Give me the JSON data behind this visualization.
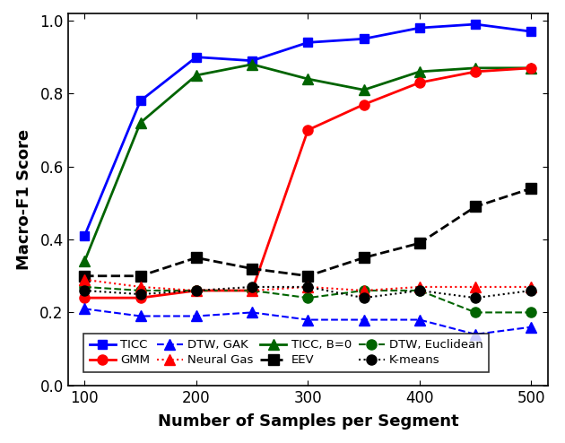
{
  "x": [
    100,
    150,
    200,
    250,
    300,
    350,
    400,
    450,
    500
  ],
  "series": [
    {
      "name": "TICC",
      "y": [
        0.41,
        0.78,
        0.9,
        0.89,
        0.94,
        0.95,
        0.98,
        0.99,
        0.97
      ],
      "color": "#0000FF",
      "linestyle": "-",
      "marker": "s",
      "linewidth": 2.0,
      "markersize": 7,
      "markerfacecolor": "#0000FF",
      "markeredgecolor": "#0000FF"
    },
    {
      "name": "TICC, B=0",
      "y": [
        0.34,
        0.72,
        0.85,
        0.88,
        0.84,
        0.81,
        0.86,
        0.87,
        0.87
      ],
      "color": "#006400",
      "linestyle": "-",
      "marker": "^",
      "linewidth": 2.0,
      "markersize": 8,
      "markerfacecolor": "#006400",
      "markeredgecolor": "#006400"
    },
    {
      "name": "GMM",
      "y": [
        0.24,
        0.24,
        0.26,
        0.26,
        0.7,
        0.77,
        0.83,
        0.86,
        0.87
      ],
      "color": "#FF0000",
      "linestyle": "-",
      "marker": "o",
      "linewidth": 2.0,
      "markersize": 8,
      "markerfacecolor": "#FF0000",
      "markeredgecolor": "#FF0000"
    },
    {
      "name": "EEV",
      "y": [
        0.3,
        0.3,
        0.35,
        0.32,
        0.3,
        0.35,
        0.39,
        0.49,
        0.54
      ],
      "color": "#000000",
      "linestyle": "--",
      "marker": "s",
      "linewidth": 2.0,
      "markersize": 8,
      "markerfacecolor": "#000000",
      "markeredgecolor": "#000000"
    },
    {
      "name": "DTW, GAK",
      "y": [
        0.21,
        0.19,
        0.19,
        0.2,
        0.18,
        0.18,
        0.18,
        0.14,
        0.16
      ],
      "color": "#0000FF",
      "linestyle": "--",
      "marker": "^",
      "linewidth": 1.5,
      "markersize": 8,
      "markerfacecolor": "#0000FF",
      "markeredgecolor": "#0000FF"
    },
    {
      "name": "DTW, Euclidean",
      "y": [
        0.27,
        0.26,
        0.26,
        0.26,
        0.24,
        0.26,
        0.26,
        0.2,
        0.2
      ],
      "color": "#006400",
      "linestyle": "--",
      "marker": "o",
      "linewidth": 1.5,
      "markersize": 8,
      "markerfacecolor": "#006400",
      "markeredgecolor": "#006400"
    },
    {
      "name": "Neural Gas",
      "y": [
        0.29,
        0.27,
        0.26,
        0.26,
        0.27,
        0.26,
        0.27,
        0.27,
        0.27
      ],
      "color": "#FF0000",
      "linestyle": ":",
      "marker": "^",
      "linewidth": 1.5,
      "markersize": 8,
      "markerfacecolor": "#FF0000",
      "markeredgecolor": "#FF0000"
    },
    {
      "name": "K-means",
      "y": [
        0.26,
        0.25,
        0.26,
        0.27,
        0.27,
        0.24,
        0.26,
        0.24,
        0.26
      ],
      "color": "#000000",
      "linestyle": ":",
      "marker": "o",
      "linewidth": 1.5,
      "markersize": 8,
      "markerfacecolor": "#000000",
      "markeredgecolor": "#000000"
    }
  ],
  "xlabel": "Number of Samples per Segment",
  "ylabel": "Macro-F1 Score",
  "xlim": [
    85,
    515
  ],
  "ylim": [
    0.0,
    1.02
  ],
  "xticks": [
    100,
    200,
    300,
    400,
    500
  ],
  "yticks": [
    0.0,
    0.2,
    0.4,
    0.6,
    0.8,
    1.0
  ],
  "figsize": [
    6.3,
    4.94
  ],
  "dpi": 100,
  "legend_order": [
    "TICC",
    "GMM",
    "DTW, GAK",
    "Neural Gas",
    "TICC, B=0",
    "EEV",
    "DTW, Euclidean",
    "K-means"
  ],
  "background_color": "#FFFFFF",
  "tick_labelsize": 12,
  "xlabel_fontsize": 13,
  "ylabel_fontsize": 13,
  "legend_fontsize": 9.5
}
